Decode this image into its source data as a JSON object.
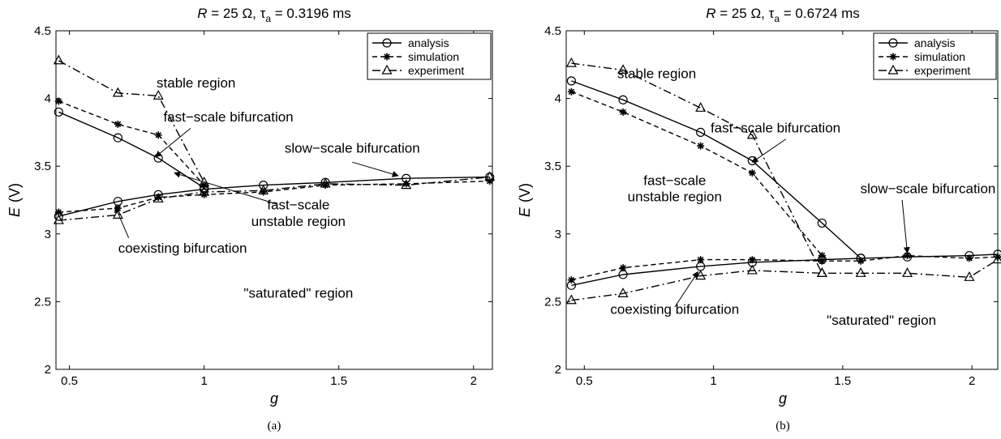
{
  "chart_data": [
    {
      "type": "line",
      "panel": "(a)",
      "title": {
        "pre": "R",
        "mid": " = 25 Ω, τ",
        "sub": "a",
        "post": " = 0.3196 ms"
      },
      "xlabel": "g",
      "ylabel": {
        "var": "E",
        "unit": "(V)"
      },
      "xlim": [
        0.45,
        2.07
      ],
      "ylim": [
        2,
        4.5
      ],
      "xticks": [
        0.5,
        1,
        1.5,
        2
      ],
      "xtick_labels": [
        "0.5",
        "1",
        "1.5",
        "2"
      ],
      "yticks": [
        2,
        2.5,
        3,
        3.5,
        4,
        4.5
      ],
      "ytick_labels": [
        "2",
        "2.5",
        "3",
        "3.5",
        "4",
        "4.5"
      ],
      "grid": false,
      "legend": {
        "placement": "top-right",
        "entries": [
          "analysis",
          "simulation",
          "experiment"
        ]
      },
      "series": [
        {
          "name": "analysis",
          "style": "solid",
          "marker": "circle",
          "x": [
            0.46,
            0.68,
            0.83,
            1.0
          ],
          "y": [
            3.9,
            3.71,
            3.56,
            3.34
          ]
        },
        {
          "name": "analysis",
          "style": "solid",
          "marker": "circle",
          "x": [
            0.46,
            0.68,
            0.83,
            1.0,
            1.22,
            1.45,
            1.75,
            2.06
          ],
          "y": [
            3.13,
            3.24,
            3.29,
            3.33,
            3.36,
            3.38,
            3.41,
            3.42
          ]
        },
        {
          "name": "simulation",
          "style": "dashed",
          "marker": "star",
          "x": [
            0.46,
            0.68,
            0.83,
            1.0
          ],
          "y": [
            3.98,
            3.81,
            3.73,
            3.36
          ]
        },
        {
          "name": "simulation",
          "style": "dashed",
          "marker": "star",
          "x": [
            0.46,
            0.68,
            0.83,
            1.0,
            1.22,
            1.45,
            1.75,
            2.06
          ],
          "y": [
            3.16,
            3.19,
            3.27,
            3.29,
            3.31,
            3.36,
            3.37,
            3.39
          ]
        },
        {
          "name": "experiment",
          "style": "dashdot",
          "marker": "triangle",
          "x": [
            0.46,
            0.68,
            0.83,
            1.0
          ],
          "y": [
            4.28,
            4.04,
            4.02,
            3.38
          ]
        },
        {
          "name": "experiment",
          "style": "dashdot",
          "marker": "triangle",
          "x": [
            0.46,
            0.68,
            0.83,
            1.0,
            1.22,
            1.45,
            1.75,
            2.06
          ],
          "y": [
            3.1,
            3.14,
            3.26,
            3.31,
            3.32,
            3.37,
            3.36,
            3.42
          ]
        }
      ],
      "annotations": [
        {
          "text": "stable region",
          "x": 0.97,
          "y": 4.08,
          "anchor": "middle"
        },
        {
          "text": "fast−scale bifurcation",
          "x": 1.09,
          "y": 3.83,
          "anchor": "middle"
        },
        {
          "text": "slow−scale bifurcation",
          "x": 1.55,
          "y": 3.6,
          "anchor": "middle"
        },
        {
          "text": "fast−scale",
          "x": 1.35,
          "y": 3.18,
          "anchor": "middle"
        },
        {
          "text": "unstable region",
          "x": 1.35,
          "y": 3.06,
          "anchor": "middle"
        },
        {
          "text": "coexisting bifurcation",
          "x": 0.92,
          "y": 2.86,
          "anchor": "middle"
        },
        {
          "text": "\"saturated\" region",
          "x": 1.35,
          "y": 2.53,
          "anchor": "middle"
        }
      ],
      "arrows": [
        {
          "from": [
            0.95,
            3.78
          ],
          "to": [
            0.82,
            3.57
          ]
        },
        {
          "from": [
            1.55,
            3.53
          ],
          "to": [
            1.72,
            3.43
          ]
        },
        {
          "from": [
            1.27,
            3.22
          ],
          "to": [
            0.89,
            3.45
          ]
        },
        {
          "from": [
            0.72,
            2.97
          ],
          "to": [
            0.67,
            3.2
          ]
        }
      ],
      "caption": "(a)"
    },
    {
      "type": "line",
      "panel": "(b)",
      "title": {
        "pre": "R",
        "mid": " = 25 Ω, τ",
        "sub": "a",
        "post": " = 0.6724 ms"
      },
      "xlabel": "g",
      "ylabel": {
        "var": "E",
        "unit": "(V)"
      },
      "xlim": [
        0.43,
        2.1
      ],
      "ylim": [
        2,
        4.5
      ],
      "xticks": [
        0.5,
        1,
        1.5,
        2
      ],
      "xtick_labels": [
        "0.5",
        "1",
        "1.5",
        "2"
      ],
      "yticks": [
        2,
        2.5,
        3,
        3.5,
        4,
        4.5
      ],
      "ytick_labels": [
        "2",
        "2.5",
        "3",
        "3.5",
        "4",
        "4.5"
      ],
      "grid": false,
      "legend": {
        "placement": "top-right",
        "entries": [
          "analysis",
          "simulation",
          "experiment"
        ]
      },
      "series": [
        {
          "name": "analysis",
          "style": "solid",
          "marker": "circle",
          "x": [
            0.45,
            0.65,
            0.95,
            1.15,
            1.42,
            1.57
          ],
          "y": [
            4.13,
            3.99,
            3.75,
            3.54,
            3.08,
            2.82
          ]
        },
        {
          "name": "analysis",
          "style": "solid",
          "marker": "circle",
          "x": [
            0.45,
            0.65,
            0.95,
            1.15,
            1.42,
            1.57,
            1.75,
            1.99,
            2.1
          ],
          "y": [
            2.62,
            2.7,
            2.76,
            2.79,
            2.81,
            2.82,
            2.83,
            2.84,
            2.85
          ]
        },
        {
          "name": "simulation",
          "style": "dashed",
          "marker": "star",
          "x": [
            0.45,
            0.65,
            0.95,
            1.15,
            1.42
          ],
          "y": [
            4.05,
            3.9,
            3.65,
            3.45,
            2.84
          ]
        },
        {
          "name": "simulation",
          "style": "dashed",
          "marker": "star",
          "x": [
            0.45,
            0.65,
            0.95,
            1.15,
            1.42,
            1.57,
            1.75,
            1.99,
            2.1
          ],
          "y": [
            2.66,
            2.75,
            2.81,
            2.81,
            2.8,
            2.8,
            2.84,
            2.82,
            2.83
          ]
        },
        {
          "name": "experiment",
          "style": "dashdot",
          "marker": "triangle",
          "x": [
            0.45,
            0.65,
            0.95,
            1.15,
            1.42
          ],
          "y": [
            4.26,
            4.21,
            3.93,
            3.73,
            2.71
          ]
        },
        {
          "name": "experiment",
          "style": "dashdot",
          "marker": "triangle",
          "x": [
            0.45,
            0.65,
            0.95,
            1.15,
            1.42,
            1.57,
            1.75,
            1.99,
            2.1
          ],
          "y": [
            2.51,
            2.56,
            2.69,
            2.73,
            2.71,
            2.71,
            2.71,
            2.68,
            2.81
          ]
        }
      ],
      "annotations": [
        {
          "text": "stable region",
          "x": 0.78,
          "y": 4.15,
          "anchor": "middle"
        },
        {
          "text": "fast−scale bifurcation",
          "x": 1.24,
          "y": 3.75,
          "anchor": "middle"
        },
        {
          "text": "slow−scale bifurcation",
          "x": 1.83,
          "y": 3.3,
          "anchor": "middle"
        },
        {
          "text": "fast−scale",
          "x": 0.85,
          "y": 3.36,
          "anchor": "middle"
        },
        {
          "text": "unstable region",
          "x": 0.85,
          "y": 3.24,
          "anchor": "middle"
        },
        {
          "text": "coexisting bifurcation",
          "x": 0.85,
          "y": 2.41,
          "anchor": "middle"
        },
        {
          "text": "\"saturated\" region",
          "x": 1.65,
          "y": 2.33,
          "anchor": "middle"
        }
      ],
      "arrows": [
        {
          "from": [
            1.28,
            3.7
          ],
          "to": [
            1.15,
            3.53
          ]
        },
        {
          "from": [
            1.73,
            3.25
          ],
          "to": [
            1.75,
            2.86
          ]
        },
        {
          "from": [
            0.85,
            2.46
          ],
          "to": [
            0.94,
            2.72
          ]
        }
      ],
      "caption": "(b)"
    }
  ]
}
